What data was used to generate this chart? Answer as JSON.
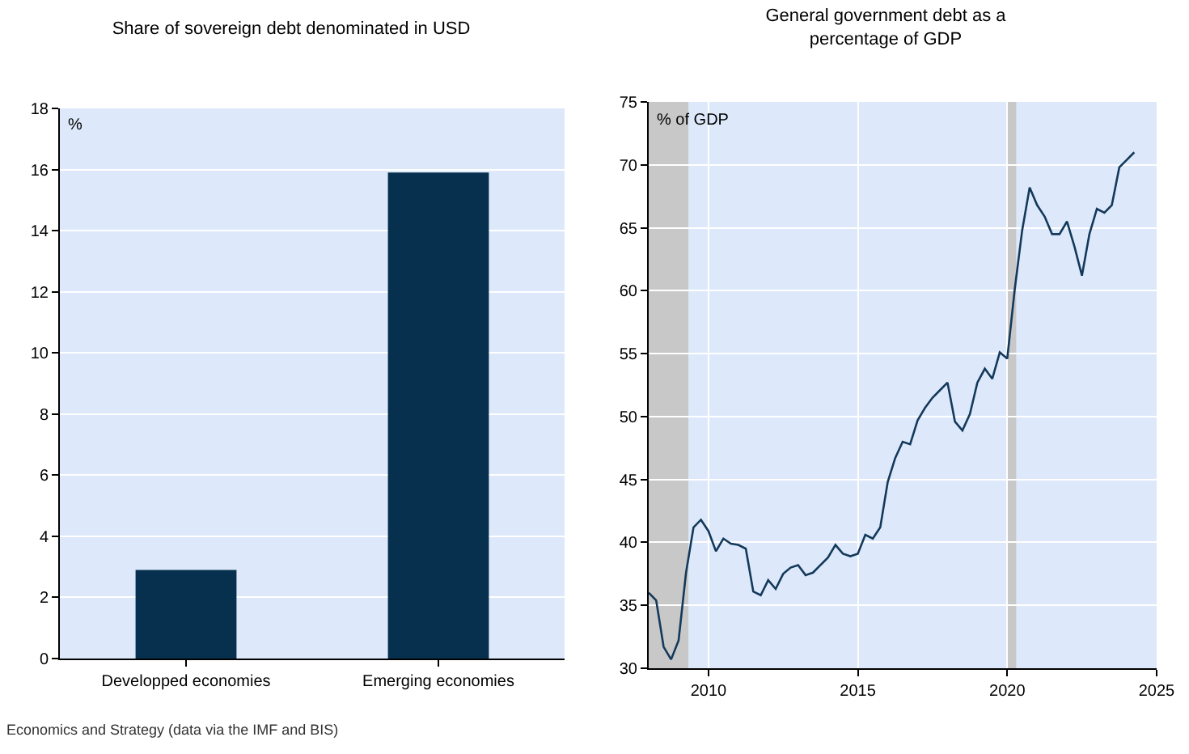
{
  "chart_data": [
    {
      "type": "bar",
      "title": "Share of sovereign debt denominated in USD",
      "ylabel": "%",
      "categories": [
        "Developped economies",
        "Emerging economies"
      ],
      "values": [
        2.9,
        15.9
      ],
      "color": "#06304d",
      "ylim": [
        0,
        18
      ],
      "yticks": [
        0,
        2,
        4,
        6,
        8,
        10,
        12,
        14,
        16,
        18
      ],
      "grid": "y",
      "annotations": [
        "Economics and Strategy (data via the IMF and BIS)"
      ]
    },
    {
      "type": "line",
      "title": "General government debt as a\npercentage of GDP",
      "ylabel": "% of GDP",
      "x": [
        2008,
        2008.25,
        2008.5,
        2008.75,
        2009,
        2009.25,
        2009.5,
        2009.75,
        2010,
        2010.25,
        2010.5,
        2010.75,
        2011,
        2011.25,
        2011.5,
        2011.75,
        2012,
        2012.25,
        2012.5,
        2012.75,
        2013,
        2013.25,
        2013.5,
        2013.75,
        2014,
        2014.25,
        2014.5,
        2014.75,
        2015,
        2015.25,
        2015.5,
        2015.75,
        2016,
        2016.25,
        2016.5,
        2016.75,
        2017,
        2017.25,
        2017.5,
        2017.75,
        2018,
        2018.25,
        2018.5,
        2018.75,
        2019,
        2019.25,
        2019.5,
        2019.75,
        2020,
        2020.25,
        2020.5,
        2020.75,
        2021,
        2021.25,
        2021.5,
        2021.75,
        2022,
        2022.25,
        2022.5,
        2022.75,
        2023,
        2023.25,
        2023.5,
        2023.75,
        2024,
        2024.25
      ],
      "series": [
        {
          "color": "#14395a",
          "values": [
            36.0,
            35.4,
            31.7,
            30.7,
            32.2,
            37.6,
            41.2,
            41.8,
            40.9,
            39.3,
            40.3,
            39.9,
            39.8,
            39.5,
            36.1,
            35.8,
            37.0,
            36.3,
            37.5,
            38.0,
            38.2,
            37.4,
            37.6,
            38.2,
            38.8,
            39.8,
            39.1,
            38.9,
            39.1,
            40.6,
            40.3,
            41.2,
            44.8,
            46.7,
            48.0,
            47.8,
            49.7,
            50.7,
            51.5,
            52.1,
            52.7,
            49.6,
            48.9,
            50.2,
            52.7,
            53.8,
            53.0,
            55.1,
            54.6,
            60.1,
            64.8,
            68.2,
            66.8,
            65.9,
            64.5,
            64.5,
            65.5,
            63.5,
            61.2,
            64.5,
            66.5,
            66.2,
            66.8,
            69.8,
            70.4,
            71.0
          ]
        }
      ],
      "xlim": [
        2008,
        2025
      ],
      "xticks": [
        2010,
        2015,
        2020,
        2025
      ],
      "ylim": [
        30,
        75
      ],
      "yticks": [
        30,
        35,
        40,
        45,
        50,
        55,
        60,
        65,
        70,
        75
      ],
      "grid": true,
      "line_style": "solid",
      "marker": "none",
      "bands": [
        {
          "axis": "x",
          "from": 2008,
          "to": 2009.33,
          "color": "#c8c8c8"
        },
        {
          "axis": "x",
          "from": 2020,
          "to": 2020.3,
          "color": "#c8c8c8"
        }
      ]
    }
  ]
}
